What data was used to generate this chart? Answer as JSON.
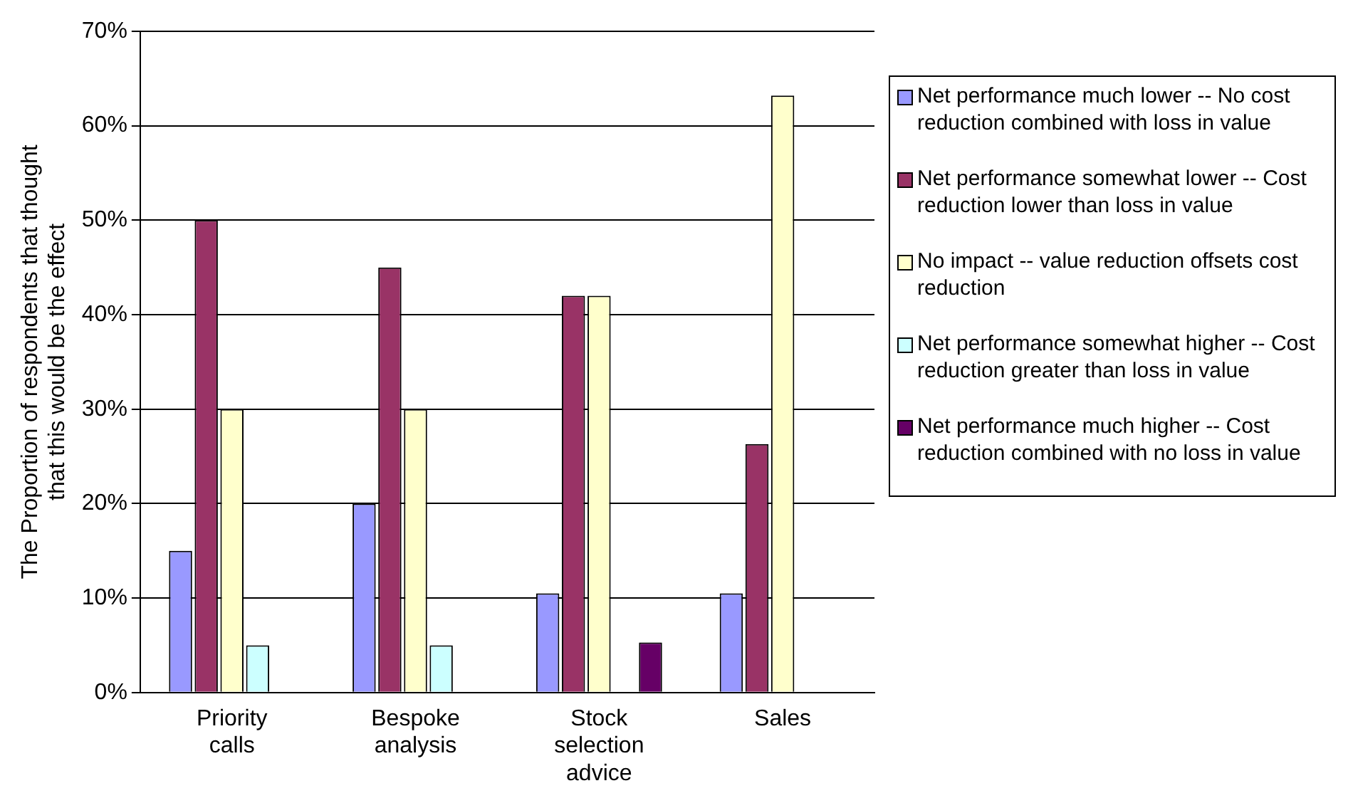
{
  "chart_data": {
    "type": "bar",
    "ylabel": "The Proportion of respondents that thought that this would be the effect",
    "categories": [
      "Priority calls",
      "Bespoke analysis",
      "Stock selection advice",
      "Sales"
    ],
    "series": [
      {
        "name": "Net performance much lower -- No cost reduction combined with loss in value",
        "color": "#9999ff",
        "values": [
          15,
          20,
          10.5,
          10.5
        ]
      },
      {
        "name": "Net performance somewhat lower -- Cost reduction lower than loss in value",
        "color": "#993366",
        "values": [
          50,
          45,
          42,
          26.3
        ]
      },
      {
        "name": "No impact -- value reduction offsets cost reduction",
        "color": "#ffffcc",
        "values": [
          30,
          30,
          42,
          63.2
        ]
      },
      {
        "name": "Net performance somewhat higher -- Cost reduction greater than loss in value",
        "color": "#ccffff",
        "values": [
          5,
          5,
          0,
          0
        ]
      },
      {
        "name": "Net performance much higher -- Cost reduction combined with no loss in value",
        "color": "#660066",
        "values": [
          0,
          0,
          5.3,
          0
        ]
      }
    ],
    "ylim": [
      0,
      70
    ],
    "yticks": [
      {
        "value": 0,
        "label": "0%"
      },
      {
        "value": 10,
        "label": "10%"
      },
      {
        "value": 20,
        "label": "20%"
      },
      {
        "value": 30,
        "label": "30%"
      },
      {
        "value": 40,
        "label": "40%"
      },
      {
        "value": 50,
        "label": "50%"
      },
      {
        "value": 60,
        "label": "60%"
      },
      {
        "value": 70,
        "label": "70%"
      }
    ],
    "grid": "y",
    "legend": "right"
  }
}
